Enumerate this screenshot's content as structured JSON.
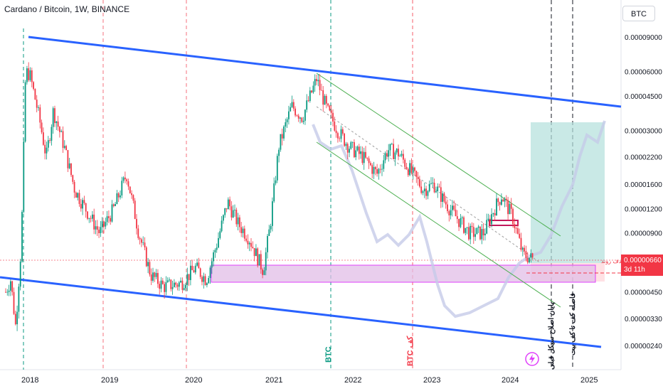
{
  "header": {
    "title": "Cardano / Bitcoin, 1W, BINANCE",
    "currency_button": "BTC"
  },
  "price_tag": {
    "value": "0.00000660",
    "countdown": "3d 11h",
    "color": "#f23645"
  },
  "colors": {
    "up_candle": "#089981",
    "down_candle": "#f23645",
    "channel": "#2962ff",
    "inner_channel": "#4caf50",
    "zone_fill": "#e1bee7",
    "zone_border": "#e040fb",
    "target_fill": "#b2dfdb",
    "ghost": "#c5cae9"
  },
  "annotations": {
    "btc_green": "BTC",
    "btc_red": "BTC کف",
    "vertical_text_1": "پایان اصلاح سیکل قبلی",
    "vertical_text_2": "فاصله کف تا کف بیت",
    "zone_label": "هدف روند"
  },
  "chart_data": {
    "type": "candlestick",
    "title": "Cardano / Bitcoin, 1W, BINANCE",
    "scale": "log",
    "y_ticks": [
      "0.00009000",
      "0.00006000",
      "0.00004500",
      "0.00003000",
      "0.00002200",
      "0.00001600",
      "0.00001200",
      "0.00000900",
      "0.00000660",
      "0.00000450",
      "0.00000330",
      "0.00000240"
    ],
    "x_ticks": [
      "2018",
      "2019",
      "2020",
      "2021",
      "2022",
      "2023",
      "2024",
      "2025"
    ],
    "series": [
      {
        "date": "2018-01",
        "open": 1e-05,
        "high": 6.8e-05,
        "low": 8e-06,
        "close": 6.2e-05
      },
      {
        "date": "2018-06",
        "open": 4.5e-05,
        "high": 5e-05,
        "low": 2.6e-05,
        "close": 2.8e-05
      },
      {
        "date": "2019-01",
        "open": 1.3e-05,
        "high": 1.4e-05,
        "low": 9e-06,
        "close": 1.1e-05
      },
      {
        "date": "2019-06",
        "open": 1.5e-05,
        "high": 2e-05,
        "low": 1.1e-05,
        "close": 1.2e-05
      },
      {
        "date": "2019-10",
        "open": 7e-06,
        "high": 8e-06,
        "low": 5.5e-06,
        "close": 6e-06
      },
      {
        "date": "2020-06",
        "open": 6e-06,
        "high": 9e-06,
        "low": 5.5e-06,
        "close": 8.5e-06
      },
      {
        "date": "2021-01",
        "open": 7e-06,
        "high": 1e-05,
        "low": 6e-06,
        "close": 9e-06
      },
      {
        "date": "2021-05",
        "open": 3e-05,
        "high": 5e-05,
        "low": 2.8e-05,
        "close": 4e-05
      },
      {
        "date": "2021-09",
        "open": 5e-05,
        "high": 6e-05,
        "low": 3.5e-05,
        "close": 4.5e-05
      },
      {
        "date": "2022-06",
        "open": 2.2e-05,
        "high": 2.6e-05,
        "low": 1.8e-05,
        "close": 2e-05
      },
      {
        "date": "2023-01",
        "open": 1.4e-05,
        "high": 1.7e-05,
        "low": 1.2e-05,
        "close": 1.3e-05
      },
      {
        "date": "2023-12",
        "open": 1.2e-05,
        "high": 1.5e-05,
        "low": 1e-05,
        "close": 1.3e-05
      },
      {
        "date": "2024-03",
        "open": 1e-05,
        "high": 1.1e-05,
        "low": 6.5e-06,
        "close": 6.6e-06
      }
    ],
    "levels": {
      "support_zone": [
        5e-06,
        6.2e-06
      ],
      "last_price": 6.6e-06
    }
  }
}
